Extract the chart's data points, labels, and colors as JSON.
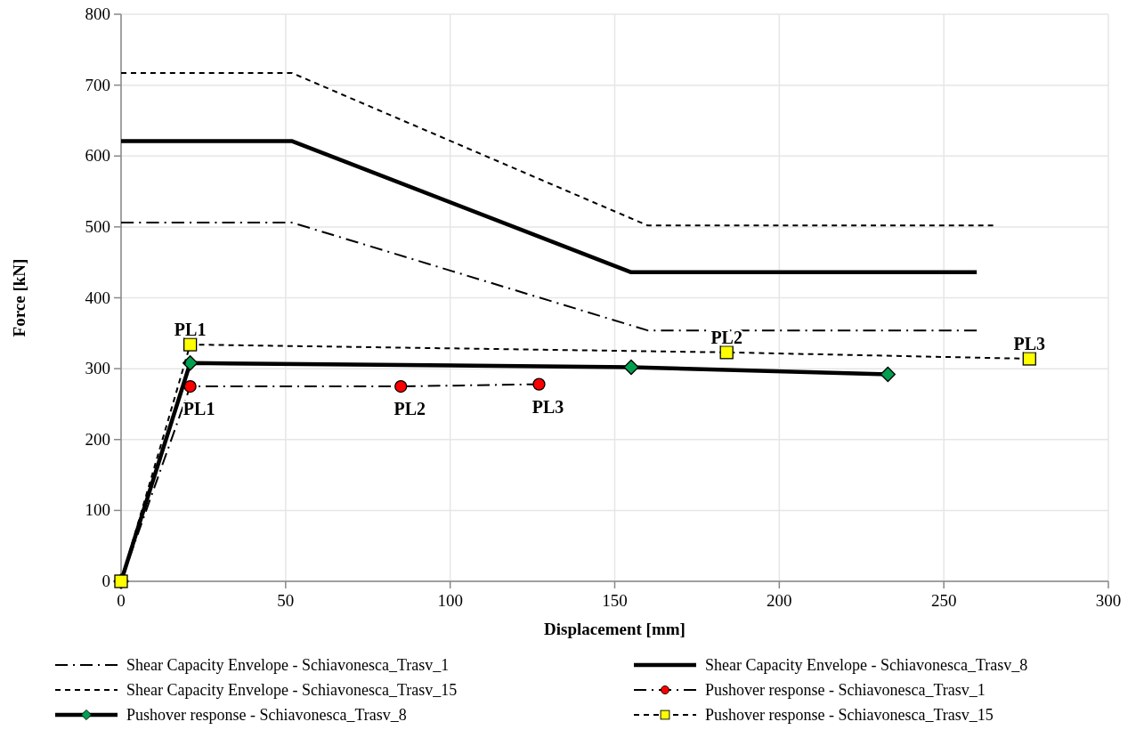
{
  "chart_data": {
    "type": "line",
    "xlabel": "Displacement [mm]",
    "ylabel": "Force [kN]",
    "xlim": [
      0,
      300
    ],
    "ylim": [
      0,
      800
    ],
    "xticks": [
      0,
      50,
      100,
      150,
      200,
      250,
      300
    ],
    "yticks": [
      0,
      100,
      200,
      300,
      400,
      500,
      600,
      700,
      800
    ],
    "grid": true,
    "legend": "bottom",
    "series": [
      {
        "name": "Shear Capacity Envelope - Schiavonesca_Trasv_1",
        "color": "#000000",
        "line_style": "dashdot",
        "marker": "none",
        "x": [
          0,
          52,
          160,
          260
        ],
        "values": [
          506,
          506,
          354,
          354
        ]
      },
      {
        "name": "Shear Capacity Envelope - Schiavonesca_Trasv_8",
        "color": "#000000",
        "line_style": "solid",
        "marker": "none",
        "x": [
          0,
          52,
          155,
          260
        ],
        "values": [
          621,
          621,
          436,
          436
        ]
      },
      {
        "name": "Shear Capacity Envelope - Schiavonesca_Trasv_15",
        "color": "#000000",
        "line_style": "dashed",
        "marker": "none",
        "x": [
          0,
          52,
          160,
          265
        ],
        "values": [
          717,
          717,
          502,
          502
        ]
      },
      {
        "name": "Pushover response - Schiavonesca_Trasv_1",
        "color": "#ff0000",
        "line_style": "dashdot",
        "marker": "circle",
        "x": [
          0,
          21,
          85,
          127
        ],
        "values": [
          0,
          275,
          275,
          278
        ]
      },
      {
        "name": "Pushover response - Schiavonesca_Trasv_8",
        "color": "#00a050",
        "line_style": "solid",
        "marker": "diamond",
        "x": [
          0,
          21,
          155,
          233
        ],
        "values": [
          0,
          308,
          302,
          292
        ]
      },
      {
        "name": "Pushover response - Schiavonesca_Trasv_15",
        "color": "#ffff00",
        "line_style": "dashed",
        "marker": "square",
        "x": [
          0,
          21,
          184,
          276
        ],
        "values": [
          0,
          334,
          323,
          314
        ]
      }
    ],
    "annotations": [
      {
        "text": "PL1",
        "x": 21,
        "y": 334
      },
      {
        "text": "PL1",
        "x": 21,
        "y": 275
      },
      {
        "text": "PL2",
        "x": 85,
        "y": 275
      },
      {
        "text": "PL3",
        "x": 127,
        "y": 278
      },
      {
        "text": "PL2",
        "x": 184,
        "y": 323
      },
      {
        "text": "PL3",
        "x": 276,
        "y": 314
      }
    ]
  }
}
